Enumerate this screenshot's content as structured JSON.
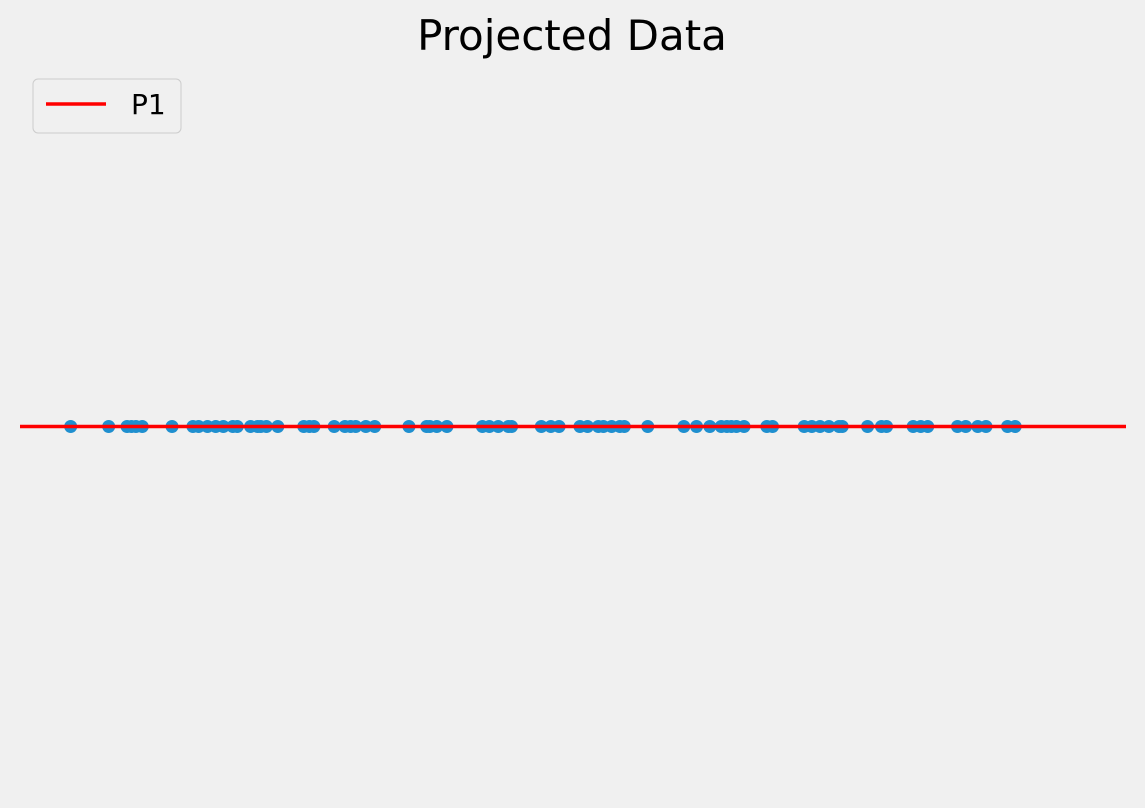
{
  "chart_data": {
    "type": "scatter",
    "title": "Projected Data",
    "xlabel": "",
    "ylabel": "",
    "axes_visible": false,
    "grid": false,
    "legend_position": "top-left",
    "xlim": [
      -8.73,
      8.73
    ],
    "ylim": [
      -1,
      1
    ],
    "series": [
      {
        "name": "P1",
        "kind": "line",
        "color": "#ff0000",
        "x": [
          -8.73,
          8.73
        ],
        "y": [
          0,
          0
        ]
      },
      {
        "kind": "points",
        "color": "#1f8fcf",
        "x": [
          -7.93,
          -7.33,
          -7.04,
          -6.97,
          -6.9,
          -6.8,
          -6.33,
          -6.0,
          -5.91,
          -5.77,
          -5.64,
          -5.52,
          -5.37,
          -5.3,
          -5.09,
          -4.98,
          -4.93,
          -4.84,
          -4.66,
          -4.25,
          -4.16,
          -4.09,
          -3.77,
          -3.6,
          -3.51,
          -3.43,
          -3.27,
          -3.13,
          -2.59,
          -2.31,
          -2.26,
          -2.15,
          -1.99,
          -1.43,
          -1.32,
          -1.18,
          -1.02,
          -0.97,
          -0.5,
          -0.35,
          -0.22,
          0.11,
          0.23,
          0.4,
          0.48,
          0.61,
          0.74,
          0.81,
          1.18,
          1.75,
          1.95,
          2.16,
          2.34,
          2.43,
          2.5,
          2.58,
          2.7,
          3.06,
          3.15,
          3.65,
          3.77,
          3.9,
          4.04,
          4.2,
          4.25,
          4.65,
          4.87,
          4.95,
          5.37,
          5.49,
          5.6,
          6.07,
          6.2,
          6.39,
          6.52,
          6.86,
          6.98
        ],
        "y": [
          0,
          0,
          0,
          0,
          0,
          0,
          0,
          0,
          0,
          0,
          0,
          0,
          0,
          0,
          0,
          0,
          0,
          0,
          0,
          0,
          0,
          0,
          0,
          0,
          0,
          0,
          0,
          0,
          0,
          0,
          0,
          0,
          0,
          0,
          0,
          0,
          0,
          0,
          0,
          0,
          0,
          0,
          0,
          0,
          0,
          0,
          0,
          0,
          0,
          0,
          0,
          0,
          0,
          0,
          0,
          0,
          0,
          0,
          0,
          0,
          0,
          0,
          0,
          0,
          0,
          0,
          0,
          0,
          0,
          0,
          0,
          0,
          0,
          0,
          0,
          0,
          0
        ]
      }
    ]
  }
}
